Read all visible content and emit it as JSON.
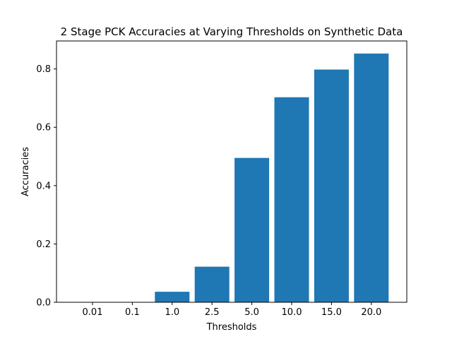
{
  "chart_data": {
    "type": "bar",
    "title": "2 Stage PCK Accuracies at Varying Thresholds on Synthetic Data",
    "xlabel": "Thresholds",
    "ylabel": "Accuracies",
    "categories": [
      "0.01",
      "0.1",
      "1.0",
      "2.5",
      "5.0",
      "10.0",
      "15.0",
      "20.0"
    ],
    "values": [
      0.0,
      0.0,
      0.036,
      0.122,
      0.495,
      0.703,
      0.798,
      0.853
    ],
    "ylim": [
      0,
      0.896
    ],
    "yticks": [
      0.0,
      0.2,
      0.4,
      0.6,
      0.8
    ],
    "ytick_labels": [
      "0.0",
      "0.2",
      "0.4",
      "0.6",
      "0.8"
    ],
    "bar_color": "#1f77b4",
    "grid": false,
    "legend": "none"
  }
}
